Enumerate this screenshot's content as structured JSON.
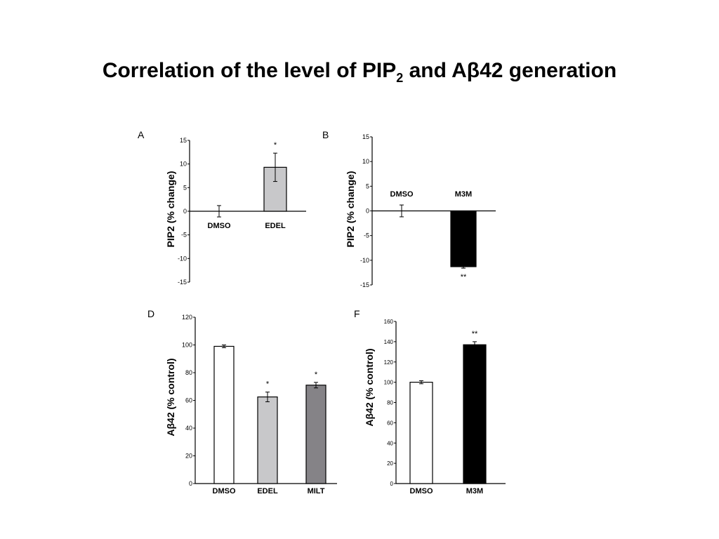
{
  "slide": {
    "title_main": "Correlation of the level of PIP",
    "title_sub": "2",
    "title_end": " and Aβ42 generation"
  },
  "chart_data": [
    {
      "panel": "A",
      "type": "bar",
      "ylabel": "PIP2 (% change)",
      "ylim": [
        -15,
        15
      ],
      "yticks": [
        15,
        10,
        5,
        0,
        -5,
        -10,
        -15
      ],
      "categories": [
        "DMSO",
        "EDEL"
      ],
      "values": [
        0,
        9.3
      ],
      "errors": [
        1.2,
        3.0
      ],
      "significance": [
        "",
        "*"
      ],
      "colors": [
        "#ffffff",
        "#c8c8ca"
      ]
    },
    {
      "panel": "B",
      "type": "bar",
      "ylabel": "PIP2 (% change)",
      "ylim": [
        -15,
        15
      ],
      "yticks": [
        15,
        10,
        5,
        0,
        -5,
        -10,
        -15
      ],
      "categories": [
        "DMSO",
        "M3M"
      ],
      "values": [
        0,
        -11.3
      ],
      "errors": [
        1.2,
        0.3
      ],
      "significance": [
        "",
        "**"
      ],
      "colors": [
        "#ffffff",
        "#000000"
      ]
    },
    {
      "panel": "D",
      "type": "bar",
      "ylabel": "Aβ42 (% control)",
      "ylim": [
        0,
        120
      ],
      "yticks": [
        120,
        100,
        80,
        60,
        40,
        20,
        0
      ],
      "categories": [
        "DMSO",
        "EDEL",
        "MILT"
      ],
      "values": [
        99,
        62.5,
        71
      ],
      "errors": [
        1,
        3.5,
        2
      ],
      "significance": [
        "",
        "*",
        "*"
      ],
      "colors": [
        "#ffffff",
        "#c8c8ca",
        "#858387"
      ]
    },
    {
      "panel": "F",
      "type": "bar",
      "ylabel": "Aβ42 (% control)",
      "ylim": [
        0,
        160
      ],
      "yticks": [
        160,
        140,
        120,
        100,
        80,
        60,
        40,
        20,
        0
      ],
      "categories": [
        "DMSO",
        "M3M"
      ],
      "values": [
        100,
        137
      ],
      "errors": [
        1.5,
        3
      ],
      "significance": [
        "",
        "**"
      ],
      "colors": [
        "#ffffff",
        "#000000"
      ]
    }
  ]
}
